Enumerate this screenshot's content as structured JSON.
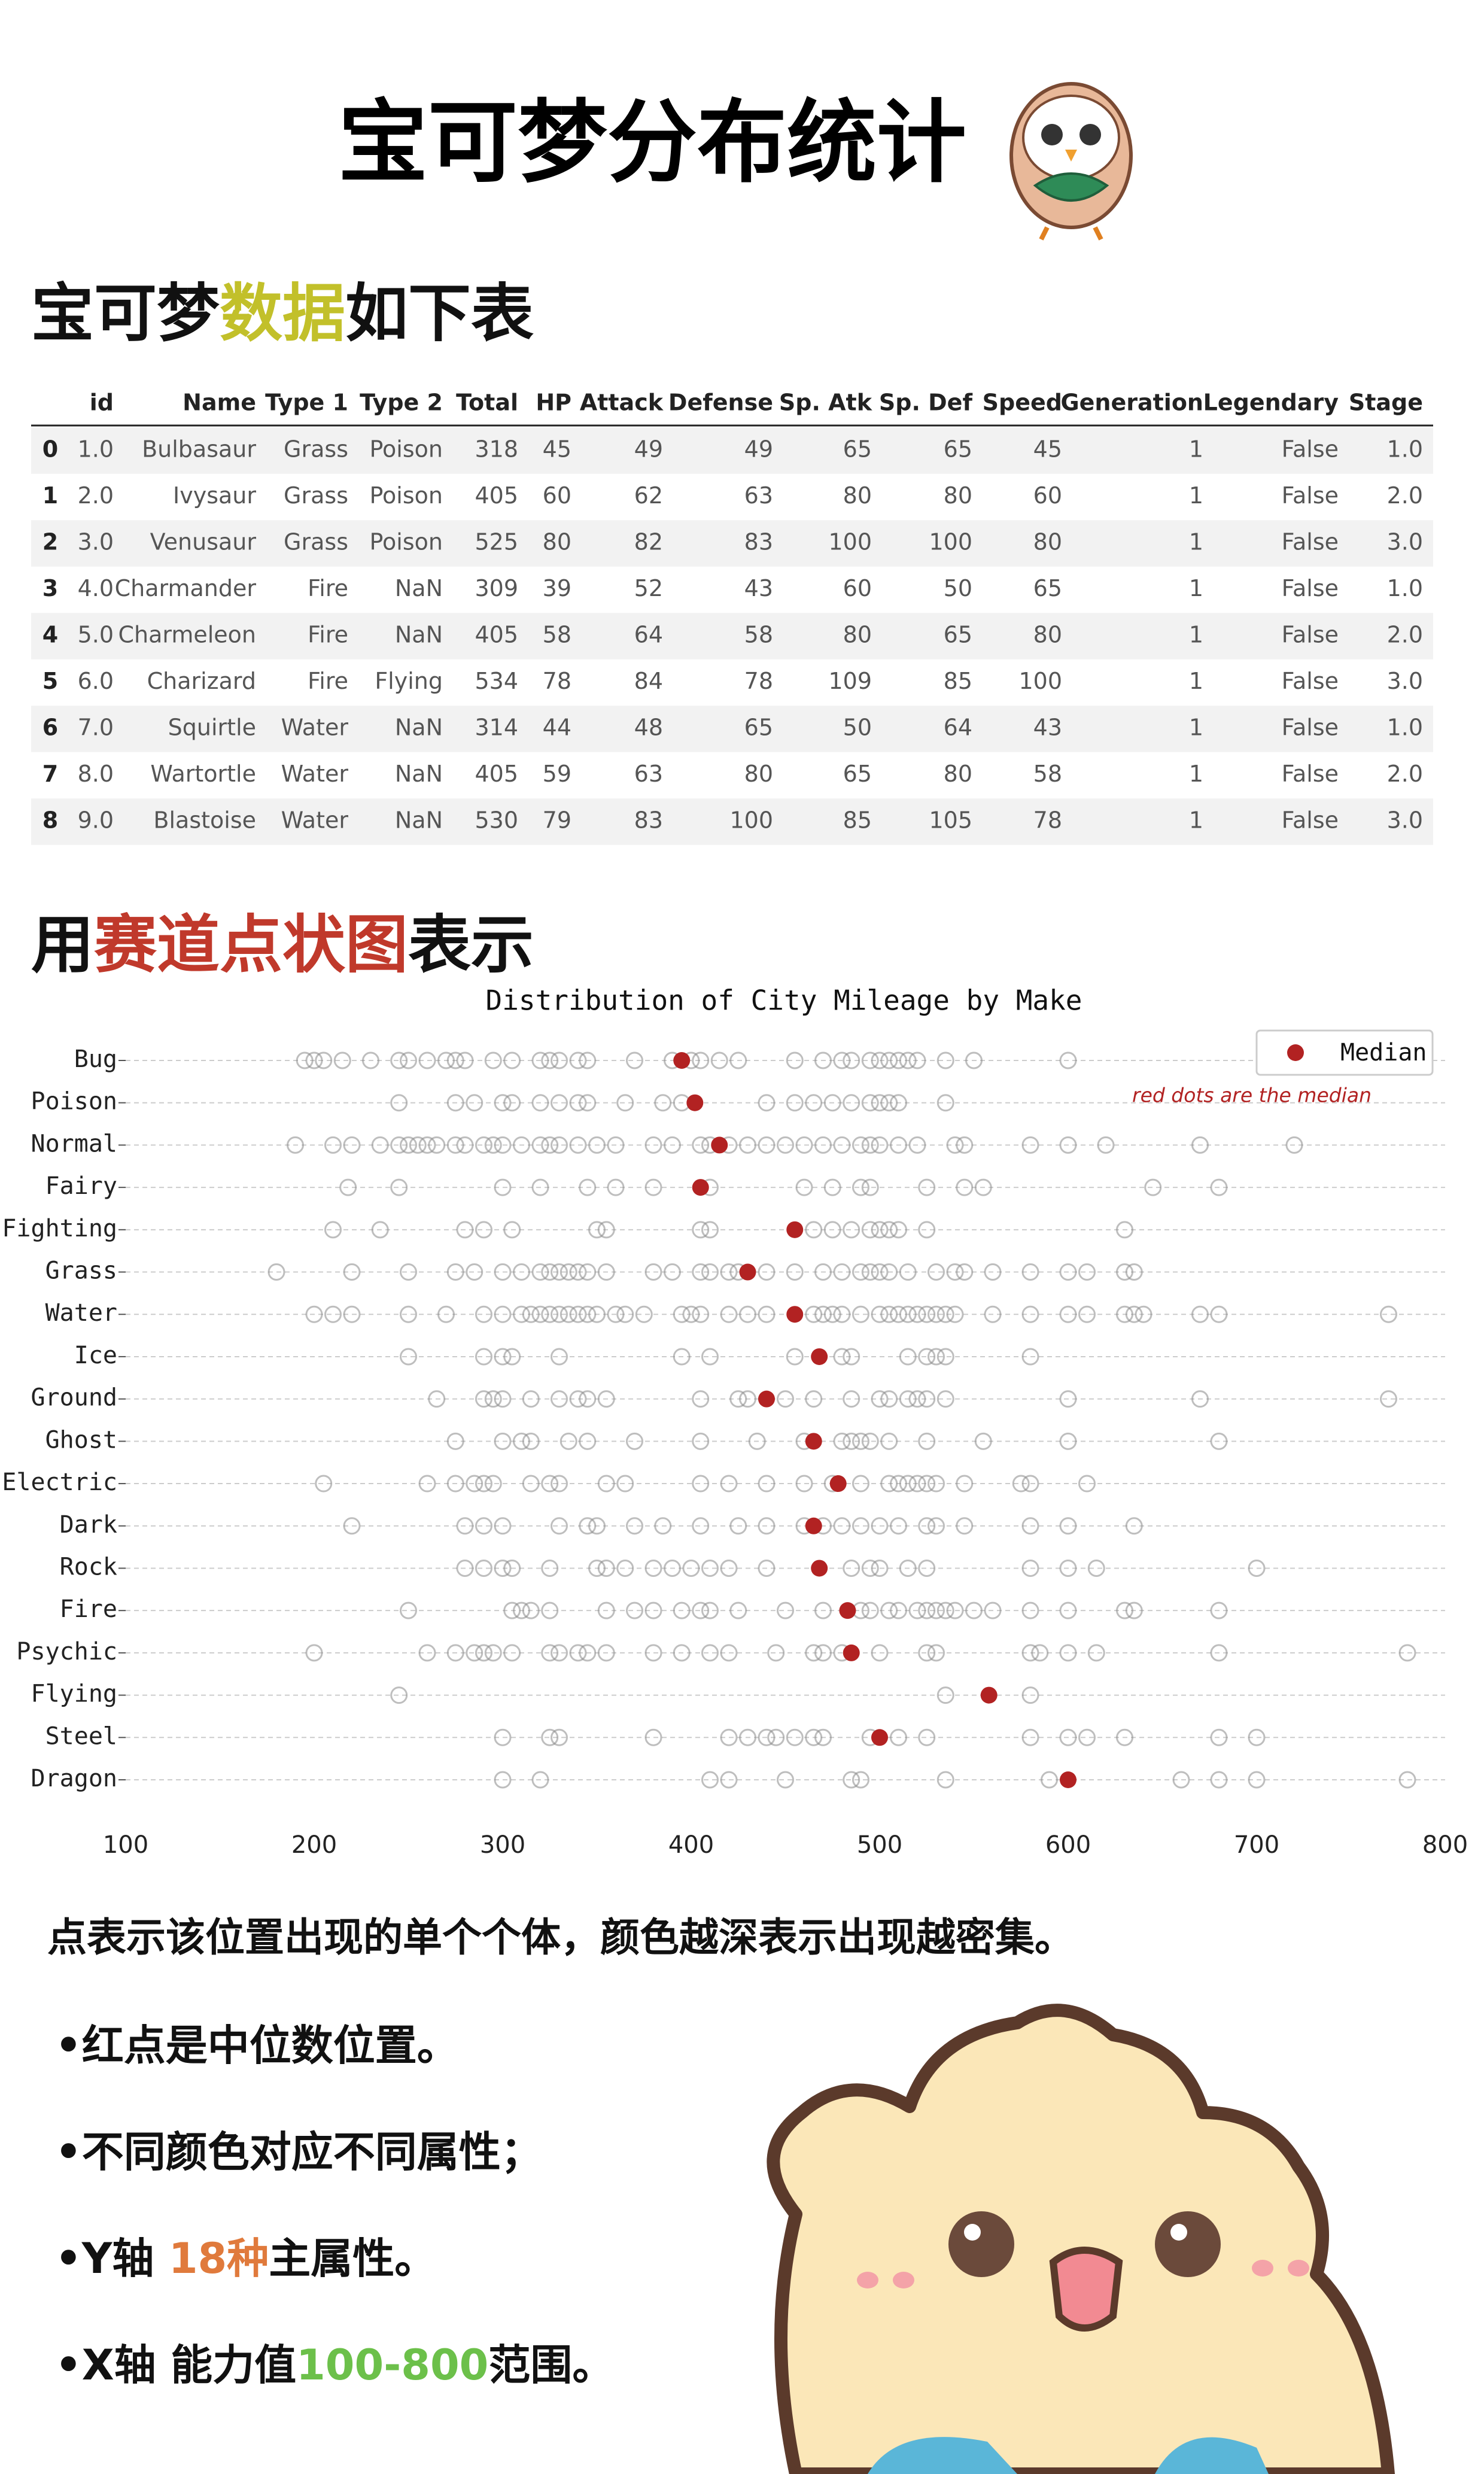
{
  "header": {
    "title": "宝可梦分布统计"
  },
  "section1": {
    "parts": [
      "宝可梦",
      "数据",
      "如下表"
    ]
  },
  "table": {
    "columns": [
      "id",
      "Name",
      "Type 1",
      "Type 2",
      "Total",
      "HP",
      "Attack",
      "Defense",
      "Sp. Atk",
      "Sp. Def",
      "Speed",
      "Generation",
      "Legendary",
      "Stage"
    ],
    "index": [
      "0",
      "1",
      "2",
      "3",
      "4",
      "5",
      "6",
      "7",
      "8"
    ],
    "rows": [
      [
        "1.0",
        "Bulbasaur",
        "Grass",
        "Poison",
        "318",
        "45",
        "49",
        "49",
        "65",
        "65",
        "45",
        "1",
        "False",
        "1.0"
      ],
      [
        "2.0",
        "Ivysaur",
        "Grass",
        "Poison",
        "405",
        "60",
        "62",
        "63",
        "80",
        "80",
        "60",
        "1",
        "False",
        "2.0"
      ],
      [
        "3.0",
        "Venusaur",
        "Grass",
        "Poison",
        "525",
        "80",
        "82",
        "83",
        "100",
        "100",
        "80",
        "1",
        "False",
        "3.0"
      ],
      [
        "4.0",
        "Charmander",
        "Fire",
        "NaN",
        "309",
        "39",
        "52",
        "43",
        "60",
        "50",
        "65",
        "1",
        "False",
        "1.0"
      ],
      [
        "5.0",
        "Charmeleon",
        "Fire",
        "NaN",
        "405",
        "58",
        "64",
        "58",
        "80",
        "65",
        "80",
        "1",
        "False",
        "2.0"
      ],
      [
        "6.0",
        "Charizard",
        "Fire",
        "Flying",
        "534",
        "78",
        "84",
        "78",
        "109",
        "85",
        "100",
        "1",
        "False",
        "3.0"
      ],
      [
        "7.0",
        "Squirtle",
        "Water",
        "NaN",
        "314",
        "44",
        "48",
        "65",
        "50",
        "64",
        "43",
        "1",
        "False",
        "1.0"
      ],
      [
        "8.0",
        "Wartortle",
        "Water",
        "NaN",
        "405",
        "59",
        "63",
        "80",
        "65",
        "80",
        "58",
        "1",
        "False",
        "2.0"
      ],
      [
        "9.0",
        "Blastoise",
        "Water",
        "NaN",
        "530",
        "79",
        "83",
        "100",
        "85",
        "105",
        "78",
        "1",
        "False",
        "3.0"
      ]
    ]
  },
  "section2": {
    "parts": [
      "用",
      "赛道点状图",
      "表示"
    ]
  },
  "chart_data": {
    "type": "strip",
    "title": "Distribution of City Mileage by Make",
    "annotation": "red dots are the median",
    "categories": [
      "Bug",
      "Poison",
      "Normal",
      "Fairy",
      "Fighting",
      "Grass",
      "Water",
      "Ice",
      "Ground",
      "Ghost",
      "Electric",
      "Dark",
      "Rock",
      "Fire",
      "Psychic",
      "Flying",
      "Steel",
      "Dragon"
    ],
    "points_color": "#888888",
    "points": [
      [
        195,
        200,
        205,
        215,
        230,
        245,
        250,
        260,
        270,
        275,
        280,
        295,
        305,
        320,
        325,
        330,
        340,
        345,
        370,
        390,
        400,
        405,
        415,
        425,
        455,
        470,
        480,
        485,
        495,
        500,
        505,
        510,
        515,
        520,
        535,
        550,
        600
      ],
      [
        245,
        275,
        285,
        300,
        305,
        320,
        330,
        340,
        345,
        365,
        385,
        395,
        440,
        455,
        465,
        475,
        485,
        495,
        500,
        505,
        510,
        535
      ],
      [
        190,
        210,
        220,
        235,
        245,
        250,
        255,
        260,
        265,
        275,
        280,
        290,
        295,
        300,
        310,
        320,
        325,
        330,
        340,
        350,
        360,
        380,
        390,
        405,
        410,
        420,
        430,
        440,
        450,
        460,
        470,
        480,
        490,
        495,
        500,
        510,
        520,
        540,
        545,
        580,
        600,
        620,
        670,
        720
      ],
      [
        218,
        245,
        300,
        320,
        345,
        360,
        380,
        410,
        460,
        475,
        490,
        495,
        525,
        545,
        555,
        645,
        680
      ],
      [
        210,
        235,
        280,
        290,
        305,
        350,
        355,
        405,
        410,
        465,
        475,
        485,
        495,
        500,
        505,
        510,
        525,
        630
      ],
      [
        180,
        220,
        250,
        275,
        285,
        300,
        310,
        320,
        325,
        330,
        335,
        340,
        345,
        355,
        380,
        390,
        405,
        410,
        420,
        425,
        440,
        455,
        470,
        480,
        490,
        495,
        500,
        505,
        515,
        530,
        540,
        545,
        560,
        580,
        600,
        610,
        630,
        635
      ],
      [
        200,
        210,
        220,
        250,
        270,
        290,
        300,
        310,
        315,
        320,
        325,
        330,
        335,
        340,
        345,
        350,
        360,
        365,
        375,
        395,
        400,
        405,
        420,
        430,
        440,
        465,
        470,
        475,
        480,
        490,
        500,
        505,
        510,
        515,
        520,
        525,
        530,
        535,
        540,
        560,
        580,
        600,
        610,
        630,
        635,
        640,
        670,
        680,
        770
      ],
      [
        250,
        290,
        300,
        305,
        330,
        395,
        410,
        455,
        480,
        485,
        515,
        525,
        530,
        535,
        580
      ],
      [
        265,
        290,
        295,
        300,
        315,
        330,
        340,
        345,
        355,
        405,
        425,
        430,
        450,
        465,
        485,
        500,
        505,
        515,
        520,
        525,
        535,
        600,
        670,
        770
      ],
      [
        275,
        300,
        310,
        315,
        335,
        345,
        370,
        405,
        435,
        460,
        480,
        485,
        490,
        495,
        505,
        525,
        555,
        600,
        680
      ],
      [
        205,
        260,
        275,
        285,
        290,
        295,
        315,
        325,
        330,
        355,
        365,
        405,
        420,
        440,
        460,
        475,
        490,
        505,
        510,
        515,
        520,
        525,
        530,
        545,
        575,
        580,
        610
      ],
      [
        220,
        280,
        290,
        300,
        330,
        345,
        350,
        370,
        385,
        405,
        425,
        440,
        460,
        470,
        480,
        490,
        500,
        510,
        525,
        530,
        545,
        580,
        600,
        635
      ],
      [
        280,
        290,
        300,
        305,
        325,
        350,
        355,
        365,
        380,
        390,
        400,
        410,
        420,
        440,
        485,
        495,
        500,
        515,
        525,
        580,
        600,
        615,
        700
      ],
      [
        250,
        305,
        310,
        315,
        325,
        355,
        370,
        380,
        395,
        405,
        410,
        425,
        450,
        470,
        490,
        495,
        505,
        510,
        520,
        525,
        530,
        535,
        540,
        550,
        560,
        580,
        600,
        630,
        635,
        680
      ],
      [
        200,
        260,
        275,
        285,
        290,
        295,
        305,
        325,
        330,
        340,
        345,
        355,
        380,
        395,
        410,
        420,
        445,
        465,
        470,
        480,
        500,
        525,
        530,
        580,
        585,
        600,
        615,
        680,
        780
      ],
      [
        245,
        535,
        580
      ],
      [
        300,
        325,
        330,
        380,
        420,
        430,
        440,
        445,
        455,
        465,
        470,
        495,
        510,
        525,
        580,
        600,
        610,
        630,
        680,
        700
      ],
      [
        300,
        320,
        410,
        420,
        450,
        485,
        490,
        535,
        590,
        660,
        680,
        700,
        780
      ]
    ],
    "series": [
      {
        "name": "Median",
        "color": "#b22222",
        "values": [
          395,
          402,
          415,
          405,
          455,
          430,
          455,
          468,
          440,
          465,
          478,
          465,
          468,
          483,
          485,
          558,
          500,
          600
        ]
      }
    ],
    "xlim": [
      100,
      800
    ],
    "xticks": [
      100,
      200,
      300,
      400,
      500,
      600,
      700,
      800
    ],
    "grid": true,
    "legend": "upper right"
  },
  "notes": {
    "description": "点表示该位置出现的单个个体，颜色越深表示出现越密集。",
    "bullets": [
      [
        "•红点是中位数位置。"
      ],
      [
        "•不同颜色对应不同属性；"
      ],
      [
        "•Y轴 ",
        "18种",
        "主属性。"
      ],
      [
        "•X轴 能力值",
        "100-800",
        "范围。"
      ]
    ],
    "bullet_colors": [
      "#000000",
      "#000000",
      "#e07a3c",
      "#6cc04a"
    ]
  }
}
